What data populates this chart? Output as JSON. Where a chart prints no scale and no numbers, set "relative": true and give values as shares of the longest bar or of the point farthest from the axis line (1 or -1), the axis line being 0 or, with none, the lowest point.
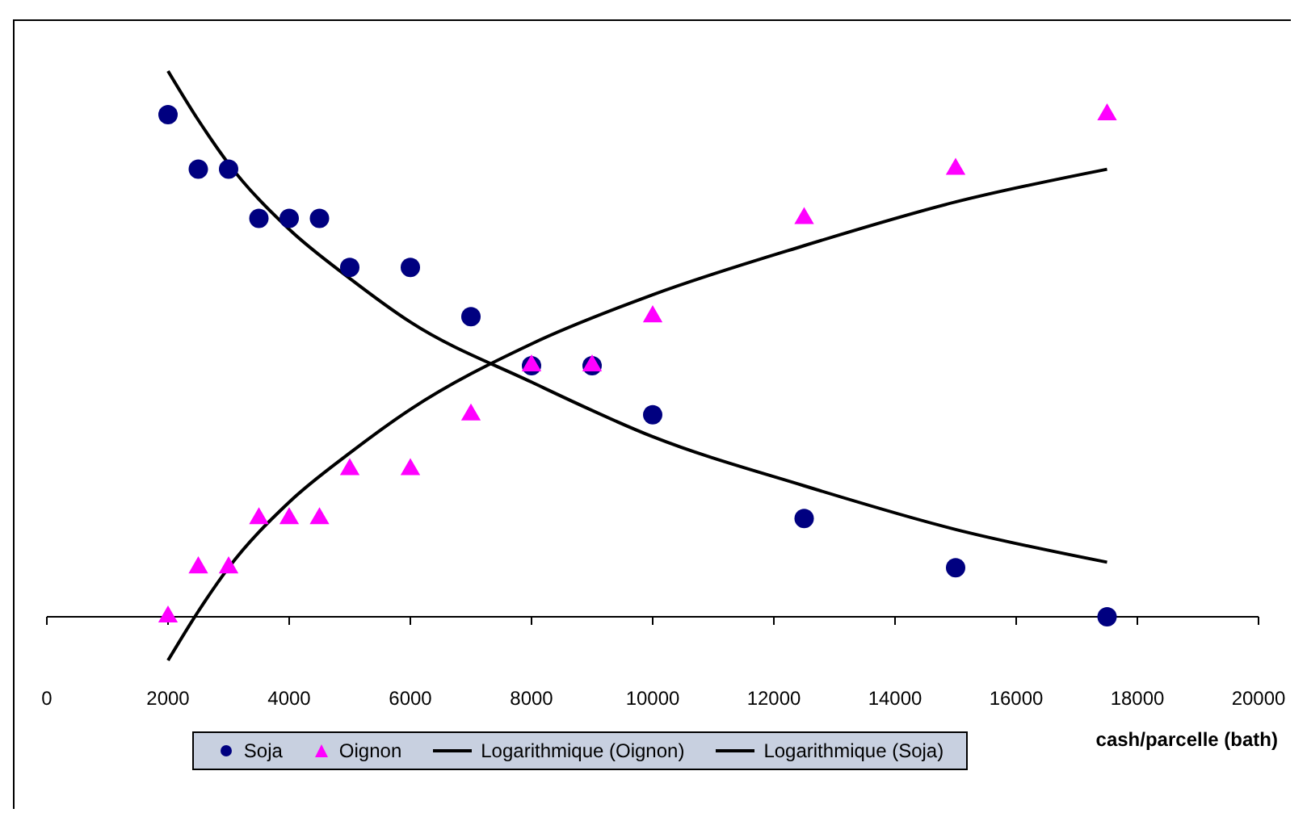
{
  "chart_data": {
    "type": "scatter",
    "xlabel": "cash/parcelle (bath)",
    "relative": true,
    "xlim": [
      0,
      20000
    ],
    "xticks": [
      0,
      2000,
      4000,
      6000,
      8000,
      10000,
      12000,
      14000,
      16000,
      18000,
      20000
    ],
    "grid": false,
    "legend": "bottom",
    "series": [
      {
        "name": "Soja",
        "marker": "circle",
        "color": "#000080",
        "x": [
          2000,
          2500,
          3000,
          3500,
          4000,
          4500,
          5000,
          6000,
          7000,
          8000,
          9000,
          10000,
          12500,
          15000,
          17500
        ],
        "values": [
          0.92,
          0.82,
          0.82,
          0.73,
          0.73,
          0.73,
          0.64,
          0.64,
          0.55,
          0.46,
          0.46,
          0.37,
          0.18,
          0.09,
          0
        ]
      },
      {
        "name": "Oignon",
        "marker": "triangle",
        "color": "#ff00ff",
        "x": [
          2000,
          2500,
          3000,
          3500,
          4000,
          4500,
          5000,
          6000,
          7000,
          8000,
          9000,
          10000,
          12500,
          15000,
          17500
        ],
        "values": [
          0,
          0.09,
          0.09,
          0.18,
          0.18,
          0.18,
          0.27,
          0.27,
          0.37,
          0.46,
          0.46,
          0.55,
          0.73,
          0.82,
          0.92
        ]
      },
      {
        "name": "Logarithmique (Oignon)",
        "type": "line",
        "marker": "none",
        "line_style": "solid",
        "color": "#000000",
        "x": [
          2000,
          2500,
          3000,
          4000,
          5000,
          6000,
          8000,
          10000,
          12500,
          15000,
          17500
        ],
        "values": [
          -0.08,
          0.01,
          0.09,
          0.21,
          0.3,
          0.38,
          0.5,
          0.59,
          0.68,
          0.76,
          0.82
        ]
      },
      {
        "name": "Logarithmique (Soja)",
        "type": "line",
        "marker": "none",
        "line_style": "solid",
        "color": "#000000",
        "x": [
          2000,
          2500,
          3000,
          4000,
          5000,
          6000,
          8000,
          10000,
          12500,
          15000,
          17500
        ],
        "values": [
          1,
          0.91,
          0.83,
          0.71,
          0.62,
          0.54,
          0.43,
          0.33,
          0.24,
          0.16,
          0.1
        ]
      }
    ]
  }
}
